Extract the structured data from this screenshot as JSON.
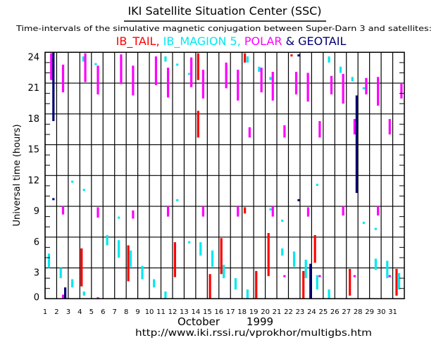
{
  "header": {
    "title": "IKI Satellite Situation Center (SSC)",
    "subtitle": "Time-intervals of the simulative magnetic conjugation between Super-Darn 3 and satellites:",
    "legend": [
      {
        "label": "IB_TAIL,",
        "color": "#ff0000"
      },
      {
        "label": " IB_MAGION 5,",
        "color": "#00e8f0"
      },
      {
        "label": " POLAR",
        "color": "#ff00ff"
      },
      {
        "label": " & ",
        "color": "#000070"
      },
      {
        "label": "GEOTAIL",
        "color": "#000070"
      }
    ]
  },
  "footer": {
    "month": "October",
    "year": "1999",
    "url": "http://www.iki.rssi.ru/vprokhor/multigbs.htm"
  },
  "chart_data": {
    "type": "interval-timeline",
    "title": "IKI Satellite Situation Center (SSC)",
    "xlabel": "October 1999",
    "ylabel": "Universal time (hours)",
    "xlim": [
      1,
      32
    ],
    "ylim": [
      0,
      24
    ],
    "grid": true,
    "x_ticks": [
      "1",
      "2",
      "3",
      "4",
      "5",
      "6",
      "7",
      "8",
      "9",
      "10",
      "11",
      "12",
      "13",
      "14",
      "15",
      "16",
      "17",
      "18",
      "19",
      "20",
      "21",
      "22",
      "23",
      "24",
      "25",
      "26",
      "27",
      "28",
      "29",
      "30",
      "31"
    ],
    "y_ticks": [
      "0",
      "3",
      "6",
      "9",
      "12",
      "15",
      "18",
      "21",
      "24"
    ],
    "series": [
      {
        "name": "IB_TAIL",
        "color": "#ff0000",
        "segments_day_start_end": [
          [
            14.21,
            21.3,
            23.9
          ],
          [
            14.21,
            15.7,
            18.3
          ],
          [
            18.24,
            23.0,
            23.9
          ],
          [
            18.24,
            8.3,
            8.9
          ],
          [
            4.15,
            1.2,
            4.9
          ],
          [
            8.18,
            1.7,
            5.2
          ],
          [
            12.21,
            2.1,
            5.5
          ],
          [
            15.23,
            0,
            2.4
          ],
          [
            16.21,
            2.4,
            5.9
          ],
          [
            22.27,
            23.6,
            23.8
          ],
          [
            20.28,
            2.2,
            6.4
          ],
          [
            24.29,
            3.5,
            6.2
          ],
          [
            23.29,
            0,
            2.7
          ],
          [
            19.22,
            0,
            2.7
          ],
          [
            27.3,
            0.3,
            2.9
          ],
          [
            31.33,
            0.3,
            2.9
          ]
        ]
      },
      {
        "name": "IB_MAGION 5",
        "color": "#00e8f0",
        "segments_day_start_end": [
          [
            4.31,
            23.1,
            23.6
          ],
          [
            5.37,
            22.8,
            22.95
          ],
          [
            11.39,
            23.1,
            23.6
          ],
          [
            12.41,
            22.7,
            22.9
          ],
          [
            13.44,
            21.8,
            22.0
          ],
          [
            18.47,
            23.0,
            23.6
          ],
          [
            3.35,
            11.3,
            11.5
          ],
          [
            4.36,
            10.5,
            10.7
          ],
          [
            12.41,
            9.5,
            9.7
          ],
          [
            7.36,
            7.8,
            8.0
          ],
          [
            1.33,
            3.0,
            4.4
          ],
          [
            2.35,
            2.0,
            3.0
          ],
          [
            3.35,
            1.1,
            1.9
          ],
          [
            4.36,
            0.3,
            0.7
          ],
          [
            6.36,
            5.2,
            6.2
          ],
          [
            7.36,
            4.0,
            5.7
          ],
          [
            8.38,
            3.1,
            4.7
          ],
          [
            9.39,
            1.9,
            3.2
          ],
          [
            10.4,
            1.1,
            1.9
          ],
          [
            11.39,
            0,
            0.7
          ],
          [
            13.44,
            5.4,
            5.6
          ],
          [
            14.42,
            4.2,
            5.5
          ],
          [
            15.44,
            3.1,
            4.7
          ],
          [
            16.42,
            2.0,
            3.3
          ],
          [
            17.44,
            0.9,
            2.0
          ],
          [
            18.47,
            0,
            0.9
          ],
          [
            19.47,
            22.1,
            22.6
          ],
          [
            20.45,
            21.3,
            21.6
          ],
          [
            25.5,
            23.0,
            23.6
          ],
          [
            26.5,
            22.0,
            22.6
          ],
          [
            27.52,
            21.2,
            21.6
          ],
          [
            28.5,
            20.4,
            20.6
          ],
          [
            24.48,
            11.0,
            11.2
          ],
          [
            20.45,
            8.6,
            8.8
          ],
          [
            21.47,
            7.5,
            7.7
          ],
          [
            28.5,
            7.3,
            7.5
          ],
          [
            29.53,
            6.7,
            6.9
          ],
          [
            21.47,
            4.2,
            4.9
          ],
          [
            22.49,
            3.1,
            4.6
          ],
          [
            23.5,
            2.0,
            3.8
          ],
          [
            29.53,
            2.8,
            3.9
          ],
          [
            30.53,
            2.0,
            3.7
          ],
          [
            24.48,
            0.9,
            2.3
          ],
          [
            25.5,
            0,
            0.9
          ],
          [
            31.55,
            0.9,
            2.5
          ]
        ]
      },
      {
        "name": "POLAR",
        "color": "#ff00ff",
        "segments_day_start_end": [
          [
            1.53,
            21.3,
            23.9
          ],
          [
            2.55,
            20.1,
            22.8
          ],
          [
            4.47,
            21.1,
            23.9
          ],
          [
            5.56,
            19.9,
            22.7
          ],
          [
            7.56,
            20.9,
            23.8
          ],
          [
            8.59,
            19.8,
            22.7
          ],
          [
            10.57,
            20.8,
            23.6
          ],
          [
            11.61,
            19.6,
            22.5
          ],
          [
            13.62,
            20.6,
            23.5
          ],
          [
            14.64,
            19.5,
            22.3
          ],
          [
            16.63,
            20.5,
            23.0
          ],
          [
            17.64,
            19.3,
            22.3
          ],
          [
            2.55,
            8.2,
            9.0
          ],
          [
            5.56,
            7.9,
            8.9
          ],
          [
            8.59,
            7.8,
            8.6
          ],
          [
            11.61,
            8.0,
            9.0
          ],
          [
            14.64,
            8.0,
            9.0
          ],
          [
            17.64,
            8.0,
            9.0
          ],
          [
            2.55,
            0,
            0.4
          ],
          [
            5.56,
            0,
            0.15
          ],
          [
            19.67,
            20.1,
            22.5
          ],
          [
            20.65,
            19.3,
            22.1
          ],
          [
            22.67,
            19.9,
            22.1
          ],
          [
            23.68,
            19.2,
            22.0
          ],
          [
            25.71,
            19.9,
            21.7
          ],
          [
            26.72,
            19.0,
            21.9
          ],
          [
            28.71,
            19.9,
            21.5
          ],
          [
            29.73,
            18.8,
            21.6
          ],
          [
            31.75,
            19.5,
            21.0
          ],
          [
            18.65,
            15.7,
            16.7
          ],
          [
            21.66,
            15.7,
            16.9
          ],
          [
            24.7,
            15.7,
            17.3
          ],
          [
            27.71,
            16.0,
            17.5
          ],
          [
            30.74,
            16.0,
            17.5
          ],
          [
            20.65,
            8.0,
            9.0
          ],
          [
            23.7,
            8.0,
            8.9
          ],
          [
            26.72,
            8.1,
            9.0
          ],
          [
            29.73,
            8.1,
            9.0
          ],
          [
            21.66,
            2.1,
            2.3
          ],
          [
            24.7,
            2.1,
            2.3
          ],
          [
            27.71,
            2.1,
            2.3
          ],
          [
            30.74,
            2.1,
            2.3
          ]
        ]
      },
      {
        "name": "GEOTAIL",
        "color": "#000070",
        "segments_day_start_end": [
          [
            1.72,
            17.3,
            24
          ],
          [
            1.72,
            9.6,
            9.8
          ],
          [
            2.74,
            0,
            1.1
          ],
          [
            22.88,
            23.6,
            23.8
          ],
          [
            22.88,
            9.5,
            9.7
          ],
          [
            27.89,
            10.3,
            19.8
          ],
          [
            23.9,
            0,
            3.4
          ]
        ]
      }
    ]
  }
}
